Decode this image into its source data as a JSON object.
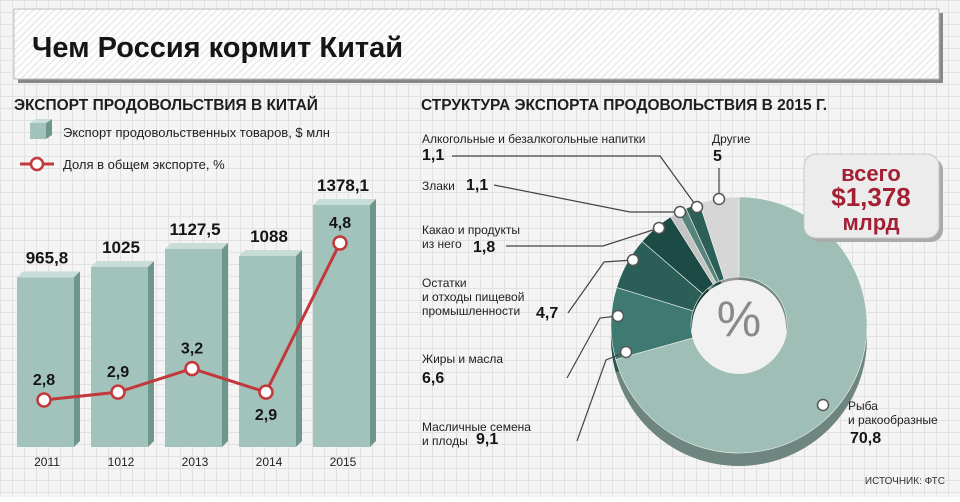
{
  "title": "Чем Россия кормит Китай",
  "source": "ИСТОЧНИК: ФТС",
  "total_badge": {
    "line1": "всего",
    "line2": "$1,378",
    "line3": "млрд"
  },
  "donut_center": "%",
  "colors": {
    "bar": "#a2c3bb",
    "line": "#c2383b",
    "badge_text": "#a31f34",
    "slices": [
      "#9fbeb6",
      "#3e7a72",
      "#2a5e57",
      "#1c4b45",
      "#b9b9b9",
      "#57857c",
      "#d4d4d4"
    ]
  },
  "chart_data": [
    {
      "type": "bar",
      "title": "ЭКСПОРТ ПРОДОВОЛЬСТВИЯ В КИТАЙ",
      "categories": [
        "2011",
        "1012",
        "2013",
        "2014",
        "2015"
      ],
      "series": [
        {
          "name": "Экспорт продовольственных товаров, $ млн",
          "values": [
            965.8,
            1025,
            1127.5,
            1088,
            1378.1
          ],
          "labels": [
            "965,8",
            "1025",
            "1127,5",
            "1088",
            "1378,1"
          ]
        },
        {
          "name": "Доля в общем экспорте, %",
          "type": "line",
          "values": [
            2.8,
            2.9,
            3.2,
            2.9,
            4.8
          ],
          "labels": [
            "2,8",
            "2,9",
            "3,2",
            "2,9",
            "4,8"
          ]
        }
      ]
    },
    {
      "type": "pie",
      "title": "СТРУКТУРА ЭКСПОРТА ПРОДОВОЛЬСТВИЯ В 2015 Г.",
      "slices": [
        {
          "label": "Рыба и ракообразные",
          "value": 70.8,
          "value_label": "70,8"
        },
        {
          "label": "Масличные семена и плоды",
          "value": 9.1,
          "value_label": "9,1"
        },
        {
          "label": "Жиры и масла",
          "value": 6.6,
          "value_label": "6,6"
        },
        {
          "label": "Остатки и отходы пищевой промышленности",
          "value": 4.7,
          "value_label": "4,7"
        },
        {
          "label": "Какао и продукты из него",
          "value": 1.8,
          "value_label": "1,8"
        },
        {
          "label": "Злаки",
          "value": 1.1,
          "value_label": "1,1"
        },
        {
          "label": "Алкогольные и безалкогольные напитки",
          "value": 1.1,
          "value_label": "1,1"
        },
        {
          "label": "Другие",
          "value": 5,
          "value_label": "5"
        }
      ]
    }
  ]
}
